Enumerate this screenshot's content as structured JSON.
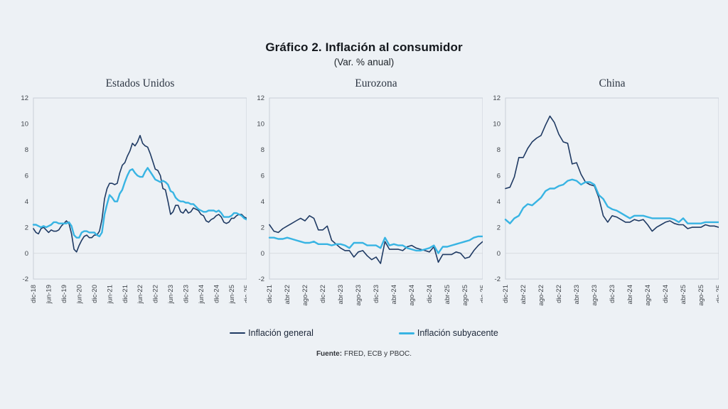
{
  "page": {
    "background": "#edf1f5",
    "plot_border": "#c9ced7",
    "gridline_color": "#d9dde2",
    "tick_text_color": "#40454b"
  },
  "header": {
    "title": "Gráfico 2. Inflación al consumidor",
    "subtitle": "(Var. % anual)"
  },
  "legend": [
    {
      "label": "Inflación general",
      "color": "#1f3a63"
    },
    {
      "label": "Inflación subyacente",
      "color": "#38b4e3"
    }
  ],
  "footer": {
    "label": "Fuente:",
    "text": "FRED, ECB y PBOC."
  },
  "chart_data": [
    {
      "type": "line",
      "title": "Estados Unidos",
      "x_frequency": "monthly",
      "x_tick_labels": [
        "dic-18",
        "jun-19",
        "dic-19",
        "jun-20",
        "dic-20",
        "jun-21",
        "dic-21",
        "jun-22",
        "dic-22",
        "jun-23",
        "dic-23",
        "jun-24",
        "dic-24",
        "jun-25",
        "dic-25"
      ],
      "tick_every": 6,
      "ylim": [
        -2,
        12
      ],
      "y_ticks": [
        -2,
        0,
        2,
        4,
        6,
        8,
        10,
        12
      ],
      "gridline_at": 0,
      "series": [
        {
          "name": "Inflación general",
          "color": "#1f3a63",
          "values": [
            1.9,
            1.6,
            1.5,
            1.9,
            2.0,
            1.8,
            1.6,
            1.8,
            1.7,
            1.7,
            1.8,
            2.1,
            2.3,
            2.5,
            2.3,
            1.5,
            0.3,
            0.1,
            0.6,
            1.0,
            1.3,
            1.4,
            1.2,
            1.2,
            1.4,
            1.4,
            1.7,
            2.6,
            4.2,
            5.0,
            5.4,
            5.4,
            5.3,
            5.4,
            6.2,
            6.8,
            7.0,
            7.5,
            7.9,
            8.5,
            8.3,
            8.6,
            9.1,
            8.5,
            8.3,
            8.2,
            7.7,
            7.1,
            6.5,
            6.4,
            6.0,
            5.0,
            4.9,
            4.0,
            3.0,
            3.2,
            3.7,
            3.7,
            3.2,
            3.1,
            3.4,
            3.1,
            3.2,
            3.5,
            3.4,
            3.3,
            3.0,
            2.9,
            2.5,
            2.4,
            2.6,
            2.7,
            2.9,
            3.0,
            2.8,
            2.4,
            2.3,
            2.4,
            2.7,
            2.7,
            2.9,
            3.0,
            3.0,
            2.8,
            2.7
          ]
        },
        {
          "name": "Inflación subyacente",
          "color": "#38b4e3",
          "values": [
            2.2,
            2.2,
            2.1,
            2.0,
            2.1,
            2.0,
            2.1,
            2.2,
            2.4,
            2.4,
            2.3,
            2.3,
            2.3,
            2.3,
            2.4,
            2.1,
            1.4,
            1.2,
            1.2,
            1.6,
            1.7,
            1.7,
            1.6,
            1.6,
            1.6,
            1.4,
            1.3,
            1.6,
            3.0,
            3.8,
            4.5,
            4.3,
            4.0,
            4.0,
            4.6,
            4.9,
            5.5,
            6.0,
            6.4,
            6.5,
            6.2,
            6.0,
            5.9,
            5.9,
            6.3,
            6.6,
            6.3,
            6.0,
            5.7,
            5.6,
            5.5,
            5.6,
            5.5,
            5.3,
            4.8,
            4.7,
            4.3,
            4.1,
            4.0,
            4.0,
            3.9,
            3.9,
            3.8,
            3.8,
            3.6,
            3.4,
            3.3,
            3.2,
            3.2,
            3.3,
            3.3,
            3.3,
            3.2,
            3.3,
            3.1,
            2.8,
            2.8,
            2.8,
            2.9,
            3.1,
            3.1,
            3.0,
            2.9,
            2.7,
            2.6
          ]
        }
      ]
    },
    {
      "type": "line",
      "title": "Eurozona",
      "x_frequency": "monthly",
      "x_tick_labels": [
        "dic-21",
        "abr-22",
        "ago-22",
        "dic-22",
        "abr-23",
        "ago-23",
        "dic-23",
        "abr-24",
        "ago-24",
        "dic-24",
        "abr-25",
        "ago-25",
        "dic-25"
      ],
      "tick_every": 4,
      "ylim": [
        -2,
        12
      ],
      "y_ticks": [
        -2,
        0,
        2,
        4,
        6,
        8,
        10,
        12
      ],
      "gridline_at": 0,
      "series": [
        {
          "name": "Inflación general",
          "color": "#1f3a63",
          "values": [
            2.2,
            1.7,
            1.6,
            1.9,
            2.1,
            2.3,
            2.5,
            2.7,
            2.5,
            2.9,
            2.7,
            1.8,
            1.8,
            2.1,
            1.0,
            0.7,
            0.4,
            0.2,
            0.2,
            -0.3,
            0.1,
            0.2,
            -0.2,
            -0.5,
            -0.3,
            -0.8,
            0.9,
            0.3,
            0.3,
            0.3,
            0.2,
            0.5,
            0.6,
            0.4,
            0.3,
            0.2,
            0.1,
            0.5,
            -0.7,
            -0.1,
            -0.1,
            -0.1,
            0.1,
            0.0,
            -0.4,
            -0.3,
            0.2,
            0.6,
            0.9
          ]
        },
        {
          "name": "Inflación subyacente",
          "color": "#38b4e3",
          "values": [
            1.2,
            1.2,
            1.1,
            1.1,
            1.2,
            1.1,
            1.0,
            0.9,
            0.8,
            0.8,
            0.9,
            0.7,
            0.7,
            0.7,
            0.6,
            0.7,
            0.7,
            0.6,
            0.4,
            0.8,
            0.8,
            0.8,
            0.6,
            0.6,
            0.6,
            0.4,
            1.2,
            0.6,
            0.7,
            0.6,
            0.6,
            0.4,
            0.3,
            0.2,
            0.2,
            0.3,
            0.4,
            0.6,
            0.0,
            0.5,
            0.5,
            0.6,
            0.7,
            0.8,
            0.9,
            1.0,
            1.2,
            1.3,
            1.3
          ]
        }
      ]
    },
    {
      "type": "line",
      "title": "China",
      "x_frequency": "monthly",
      "x_tick_labels": [
        "dic-21",
        "abr-22",
        "ago-22",
        "dic-22",
        "abr-23",
        "ago-23",
        "dic-23",
        "abr-24",
        "ago-24",
        "dic-24",
        "abr-25",
        "ago-25",
        "dic-25"
      ],
      "tick_every": 4,
      "ylim": [
        -2,
        12
      ],
      "y_ticks": [
        -2,
        0,
        2,
        4,
        6,
        8,
        10,
        12
      ],
      "gridline_at": 0,
      "series": [
        {
          "name": "Inflación general",
          "color": "#1f3a63",
          "values": [
            5.0,
            5.1,
            5.9,
            7.4,
            7.4,
            8.1,
            8.6,
            8.9,
            9.1,
            9.9,
            10.6,
            10.1,
            9.2,
            8.6,
            8.5,
            6.9,
            7.0,
            6.1,
            5.5,
            5.3,
            5.2,
            4.3,
            2.9,
            2.4,
            2.9,
            2.8,
            2.6,
            2.4,
            2.4,
            2.6,
            2.5,
            2.6,
            2.2,
            1.7,
            2.0,
            2.2,
            2.4,
            2.5,
            2.3,
            2.2,
            2.2,
            1.9,
            2.0,
            2.0,
            2.0,
            2.2,
            2.1,
            2.1,
            2.0
          ]
        },
        {
          "name": "Inflación subyacente",
          "color": "#38b4e3",
          "values": [
            2.6,
            2.3,
            2.7,
            2.9,
            3.5,
            3.8,
            3.7,
            4.0,
            4.3,
            4.8,
            5.0,
            5.0,
            5.2,
            5.3,
            5.6,
            5.7,
            5.6,
            5.3,
            5.5,
            5.5,
            5.3,
            4.5,
            4.2,
            3.6,
            3.4,
            3.3,
            3.1,
            2.9,
            2.7,
            2.9,
            2.9,
            2.9,
            2.8,
            2.7,
            2.7,
            2.7,
            2.7,
            2.7,
            2.6,
            2.4,
            2.7,
            2.3,
            2.3,
            2.3,
            2.3,
            2.4,
            2.4,
            2.4,
            2.4
          ]
        }
      ]
    }
  ]
}
